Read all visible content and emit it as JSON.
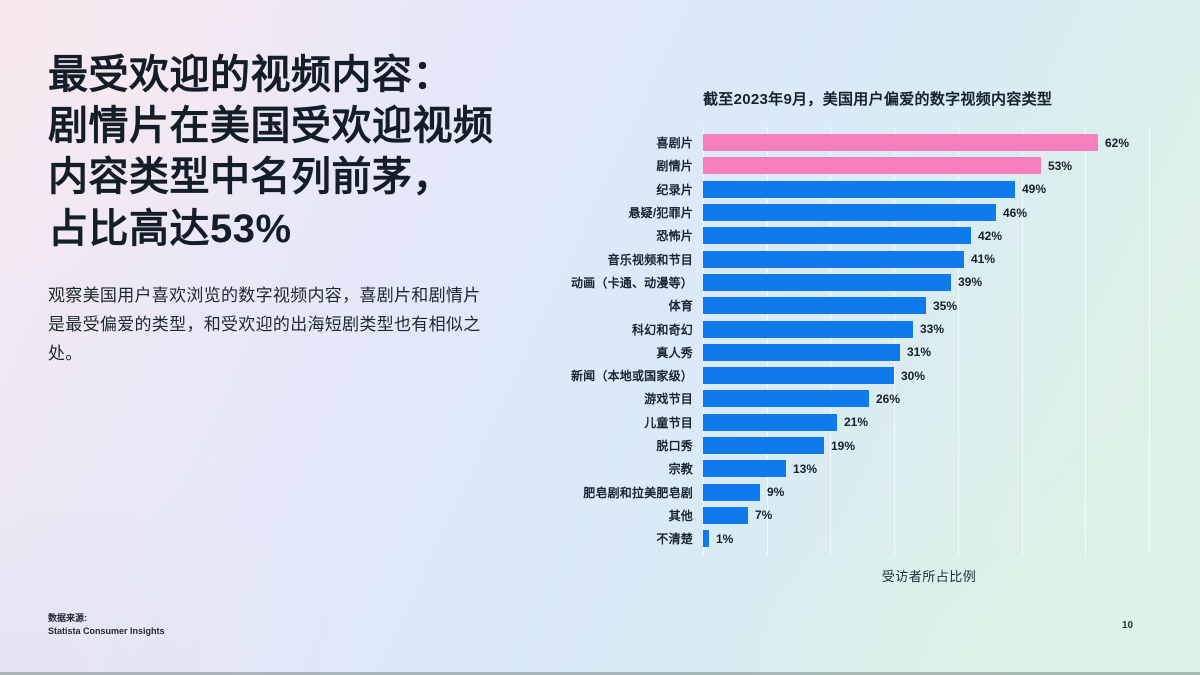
{
  "page": {
    "title": "最受欢迎的视频内容：\n剧情片在美国受欢迎视频\n内容类型中名列前茅，\n占比高达53%",
    "body": "观察美国用户喜欢浏览的数字视频内容，喜剧片和剧情片\n是最受偏爱的类型，和受欢迎的出海短剧类型也有相似之\n处。",
    "source_label": "数据来源:",
    "source_name": "Statista Consumer Insights",
    "page_number": "10"
  },
  "chart_data": {
    "type": "bar",
    "orientation": "horizontal",
    "title": "截至2023年9月，美国用户偏爱的数字视频内容类型",
    "xlabel": "受访者所占比例",
    "categories": [
      "喜剧片",
      "剧情片",
      "纪录片",
      "悬疑/犯罪片",
      "恐怖片",
      "音乐视频和节目",
      "动画（卡通、动漫等）",
      "体育",
      "科幻和奇幻",
      "真人秀",
      "新闻（本地或国家级）",
      "游戏节目",
      "儿童节目",
      "脱口秀",
      "宗教",
      "肥皂剧和拉美肥皂剧",
      "其他",
      "不清楚"
    ],
    "values": [
      62,
      53,
      49,
      46,
      42,
      41,
      39,
      35,
      33,
      31,
      30,
      26,
      21,
      19,
      13,
      9,
      7,
      1
    ],
    "value_labels": [
      "62%",
      "53%",
      "49%",
      "46%",
      "42%",
      "41%",
      "39%",
      "35%",
      "33%",
      "31%",
      "30%",
      "26%",
      "21%",
      "19%",
      "13%",
      "9%",
      "7%",
      "1%"
    ],
    "highlight_indices": [
      0,
      1
    ],
    "highlight_color": "#F87FBE",
    "bar_color": "#0F7AEC",
    "xlim": [
      0,
      70
    ],
    "grid": true,
    "grid_step": 10
  }
}
